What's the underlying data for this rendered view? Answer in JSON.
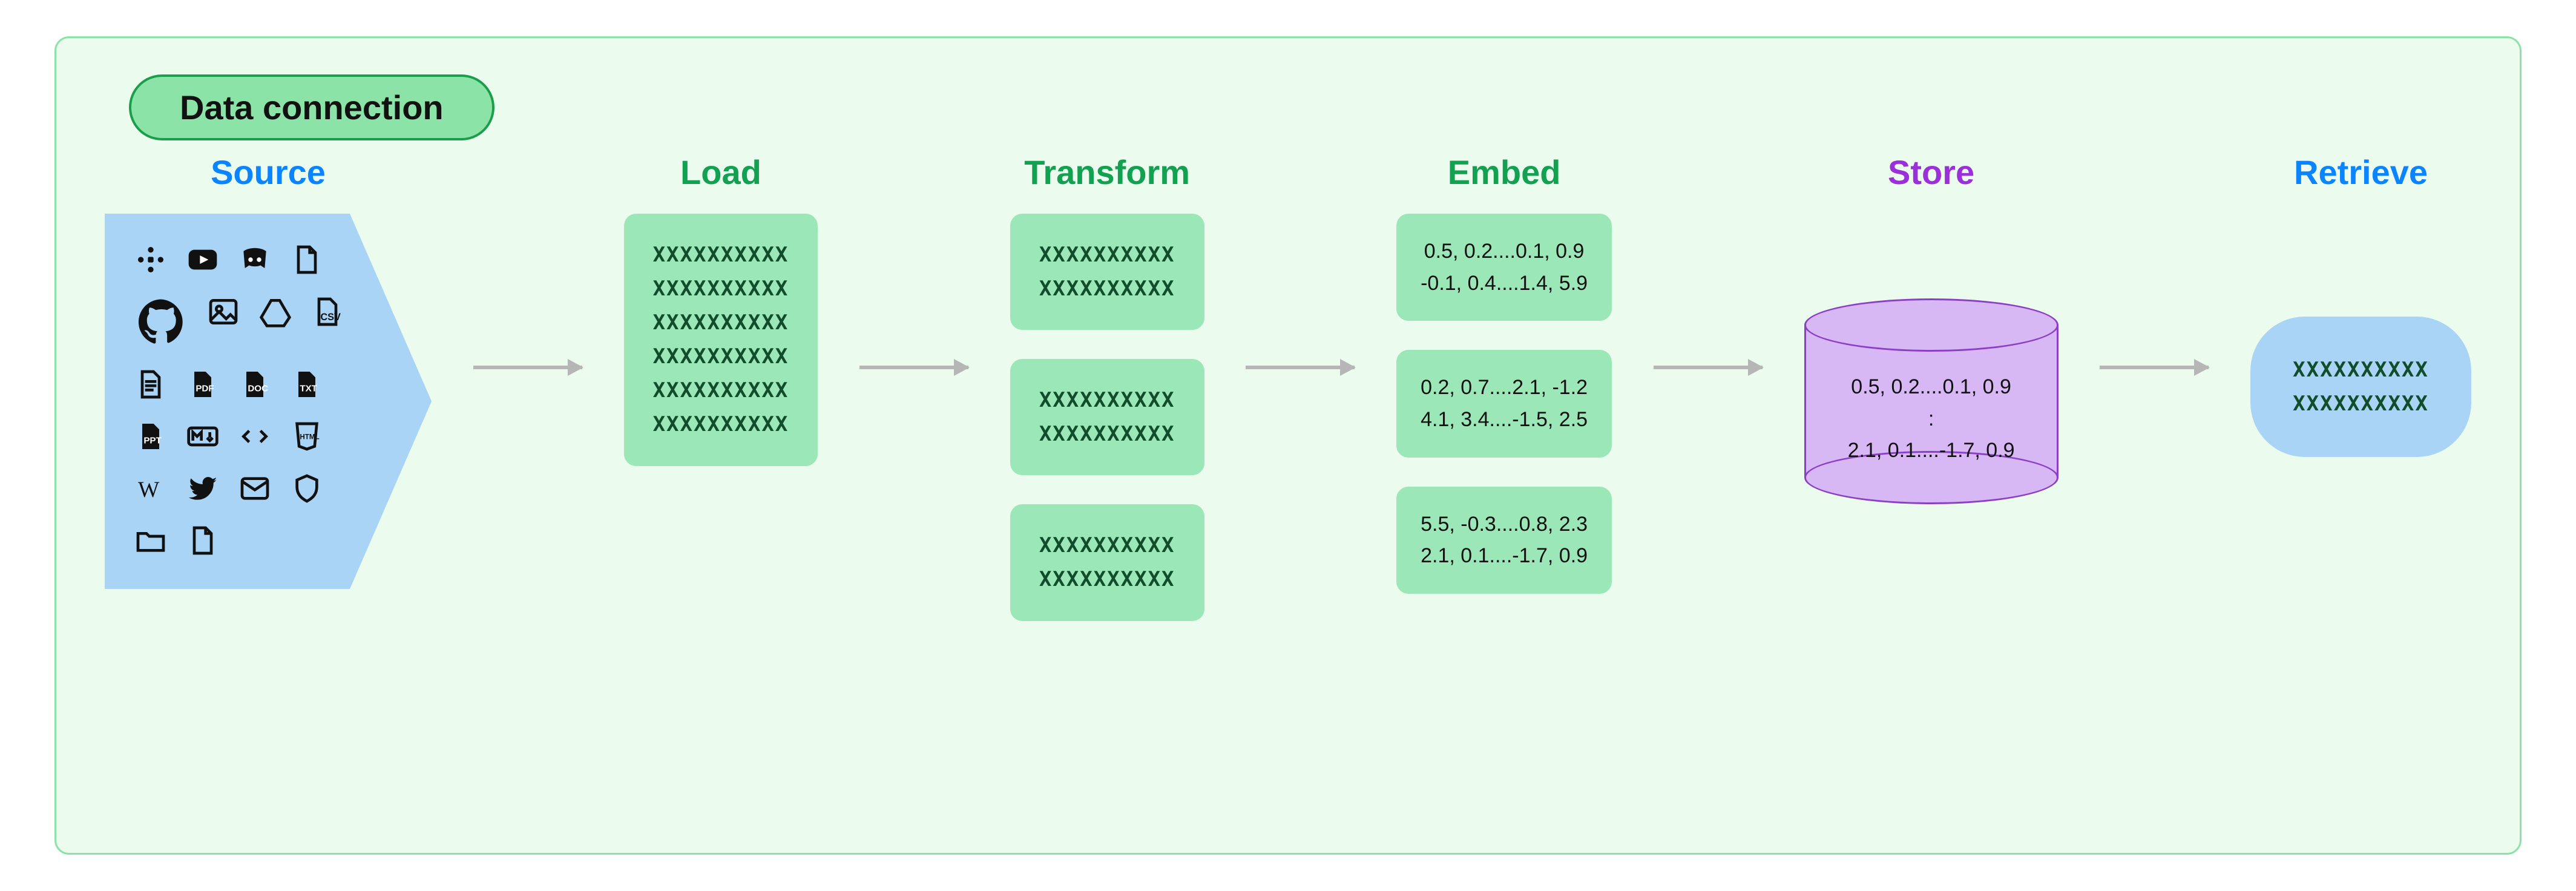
{
  "diagram": {
    "type": "flowchart",
    "title": "Data connection",
    "background_color": "#ebfcef",
    "frame_border_color": "#8be3a7",
    "badge": {
      "bg": "#8be3a7",
      "border": "#1b9e4b",
      "text_color": "#111111"
    },
    "arrow_color": "#b6b6b6",
    "stages": {
      "source": {
        "label": "Source",
        "title_color": "#0a84ff"
      },
      "load": {
        "label": "Load",
        "title_color": "#12a150"
      },
      "transform": {
        "label": "Transform",
        "title_color": "#12a150"
      },
      "embed": {
        "label": "Embed",
        "title_color": "#12a150"
      },
      "store": {
        "label": "Store",
        "title_color": "#9b2fd9"
      },
      "retrieve": {
        "label": "Retrieve",
        "title_color": "#0a84ff"
      }
    },
    "source_shape": {
      "fill": "#a9d4f5"
    },
    "green_card": {
      "fill": "#9be7b7",
      "text_color": "#114d2b"
    },
    "store_cyl": {
      "fill": "#d8b7f5",
      "stroke": "#8b3fc9",
      "text_color": "#111111"
    },
    "retrieve_pill": {
      "fill": "#a9d4f5",
      "text_color": "#114d2b"
    },
    "load_lines": "XXXXXXXXXX\nXXXXXXXXXX\nXXXXXXXXXX\nXXXXXXXXXX\nXXXXXXXXXX\nXXXXXXXXXX",
    "transform_chunks": [
      "XXXXXXXXXX\nXXXXXXXXXX",
      "XXXXXXXXXX\nXXXXXXXXXX",
      "XXXXXXXXXX\nXXXXXXXXXX"
    ],
    "embed_vectors": [
      "0.5, 0.2....0.1, 0.9\n-0.1, 0.4....1.4, 5.9",
      "0.2, 0.7....2.1, -1.2\n4.1, 3.4....-1.5, 2.5",
      "5.5, -0.3....0.8, 2.3\n2.1, 0.1....-1.7, 0.9"
    ],
    "store_text": "0.5, 0.2....0.1, 0.9\n:\n2.1, 0.1....-1.7, 0.9",
    "retrieve_text": "XXXXXXXXXX\nXXXXXXXXXX",
    "source_icons": [
      "slack",
      "youtube",
      "discord",
      "file",
      "github",
      "image",
      "gdrive",
      "csv",
      "doc-lines",
      "pdf",
      "doc",
      "txt",
      "ppt",
      "markdown",
      "code",
      "html",
      "wikipedia",
      "twitter",
      "mail",
      "shield",
      "folder",
      "file2"
    ]
  }
}
